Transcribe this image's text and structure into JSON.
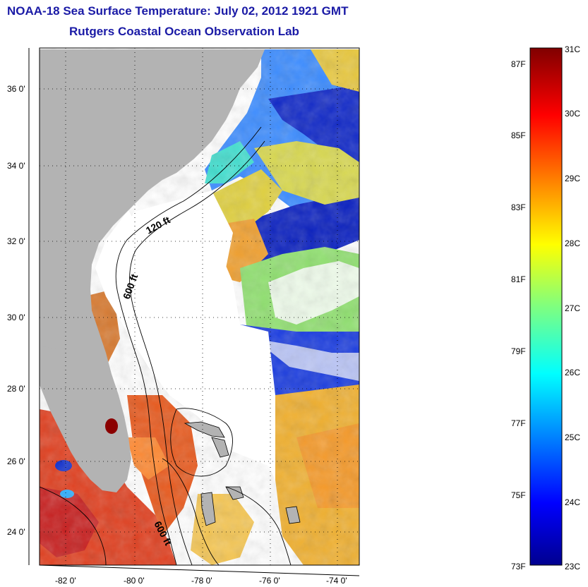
{
  "title_line1": "NOAA-18 Sea Surface Temperature:  July 02, 2012 1921 GMT",
  "title_line2": "Rutgers Coastal Ocean Observation Lab",
  "lat_labels": [
    "36 0'",
    "34 0'",
    "32 0'",
    "30 0'",
    "28 0'",
    "26 0'",
    "24 0'"
  ],
  "lon_labels": [
    "-82 0'",
    "-80 0'",
    "-78 0'",
    "-76 0'",
    "-74 0'"
  ],
  "contour_labels": [
    "120 ft",
    "600 ft",
    "600 ft"
  ],
  "colorbar": {
    "fahrenheit": [
      "87F",
      "85F",
      "83F",
      "81F",
      "79F",
      "77F",
      "75F",
      "73F"
    ],
    "celsius": [
      "31C",
      "30C",
      "29C",
      "28C",
      "27C",
      "26C",
      "25C",
      "24C",
      "23C"
    ],
    "min_c": 23,
    "max_c": 31
  },
  "colors": {
    "title": "#1a1aa6",
    "land": "#b3b3b3",
    "cloud_mask": "#ffffff"
  }
}
